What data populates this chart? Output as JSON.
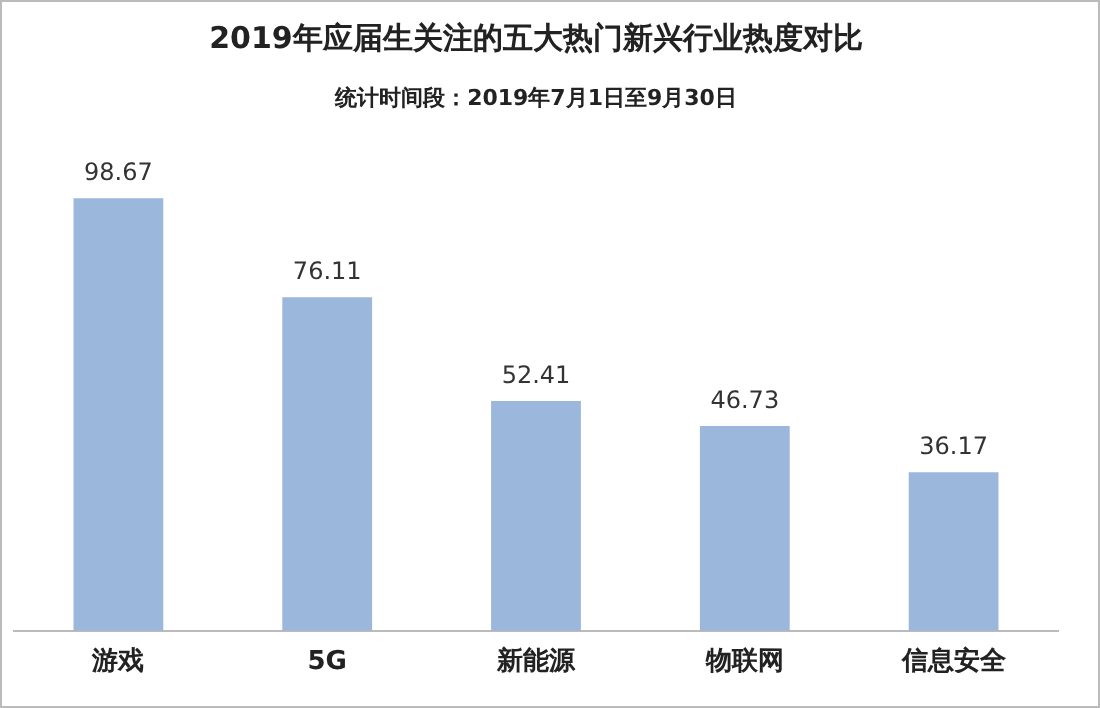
{
  "chart_data": {
    "type": "bar",
    "title": "2019年应届生关注的五大热门新兴行业热度对比",
    "subtitle": "统计时间段：2019年7月1日至9月30日",
    "categories": [
      "游戏",
      "5G",
      "新能源",
      "物联网",
      "信息安全"
    ],
    "values": [
      98.67,
      76.11,
      52.41,
      46.73,
      36.17
    ],
    "color": "#9bb7db",
    "data_labels": true,
    "grid": false,
    "legend": false
  }
}
